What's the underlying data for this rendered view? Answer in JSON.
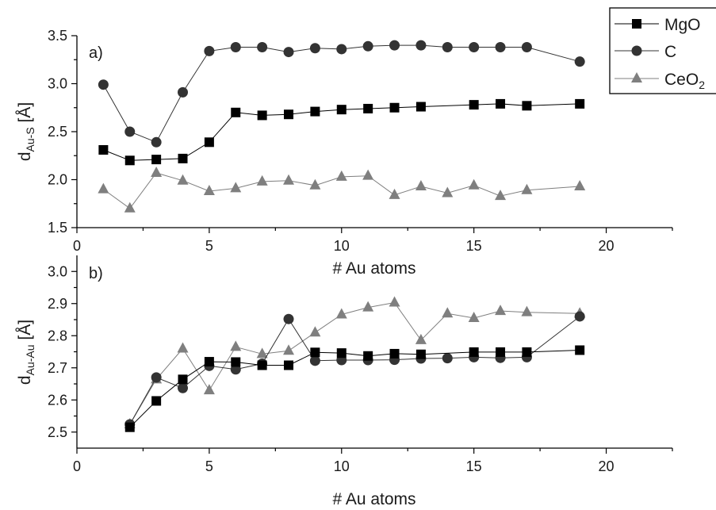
{
  "chart_data": [
    {
      "type": "line",
      "panel_label": "a)",
      "xlabel": "# Au atoms",
      "ylabel": {
        "base": "d",
        "sub": "Au-S",
        "unit": " [Å]"
      },
      "xlim": [
        0,
        22.5
      ],
      "ylim": [
        1.5,
        3.5
      ],
      "xticks": [
        "0",
        "5",
        "10",
        "15",
        "20"
      ],
      "yticks": [
        "1.5",
        "2.0",
        "2.5",
        "3.0",
        "3.5"
      ],
      "grid": false,
      "legend": "top-right",
      "series": [
        {
          "name": "MgO",
          "marker": "square",
          "color": "#000000",
          "x": [
            1,
            2,
            3,
            4,
            5,
            6,
            7,
            8,
            9,
            10,
            11,
            12,
            13,
            15,
            16,
            17,
            19
          ],
          "y": [
            2.31,
            2.2,
            2.21,
            2.22,
            2.39,
            2.7,
            2.67,
            2.68,
            2.71,
            2.73,
            2.74,
            2.75,
            2.76,
            2.78,
            2.79,
            2.77,
            2.79
          ]
        },
        {
          "name": "C",
          "marker": "circle",
          "color": "#333333",
          "x": [
            1,
            2,
            3,
            4,
            5,
            6,
            7,
            8,
            9,
            10,
            11,
            12,
            13,
            14,
            15,
            16,
            17,
            19
          ],
          "y": [
            2.99,
            2.5,
            2.39,
            2.91,
            3.34,
            3.38,
            3.38,
            3.33,
            3.37,
            3.36,
            3.39,
            3.4,
            3.4,
            3.38,
            3.38,
            3.38,
            3.38,
            3.23
          ]
        },
        {
          "name": "CeO2",
          "marker": "triangle",
          "color": "#7f7f7f",
          "x": [
            1,
            2,
            3,
            4,
            5,
            6,
            7,
            8,
            9,
            10,
            11,
            12,
            13,
            14,
            15,
            16,
            17,
            19
          ],
          "y": [
            1.9,
            1.7,
            2.07,
            1.99,
            1.88,
            1.91,
            1.98,
            1.99,
            1.94,
            2.03,
            2.04,
            1.84,
            1.93,
            1.86,
            1.94,
            1.83,
            1.89,
            1.93
          ]
        }
      ]
    },
    {
      "type": "line",
      "panel_label": "b)",
      "xlabel": "# Au atoms",
      "ylabel": {
        "base": "d",
        "sub": "Au-Au",
        "unit": " [Å]"
      },
      "xlim": [
        0,
        22.5
      ],
      "ylim": [
        2.45,
        3.05
      ],
      "xticks": [
        "0",
        "5",
        "10",
        "15",
        "20"
      ],
      "yticks": [
        "2.5",
        "2.6",
        "2.7",
        "2.8",
        "2.9",
        "3.0"
      ],
      "grid": false,
      "series": [
        {
          "name": "MgO",
          "marker": "square",
          "color": "#000000",
          "x": [
            2,
            3,
            4,
            5,
            6,
            7,
            8,
            9,
            10,
            11,
            12,
            13,
            15,
            16,
            17,
            19
          ],
          "y": [
            2.515,
            2.597,
            2.664,
            2.719,
            2.718,
            2.708,
            2.708,
            2.748,
            2.746,
            2.737,
            2.744,
            2.742,
            2.749,
            2.749,
            2.749,
            2.755
          ]
        },
        {
          "name": "C",
          "marker": "circle",
          "color": "#333333",
          "x": [
            2,
            3,
            4,
            5,
            6,
            7,
            8,
            9,
            10,
            11,
            12,
            13,
            14,
            15,
            16,
            17,
            19
          ],
          "y": [
            2.524,
            2.67,
            2.637,
            2.706,
            2.695,
            2.713,
            2.852,
            2.722,
            2.724,
            2.724,
            2.725,
            2.729,
            2.73,
            2.733,
            2.731,
            2.733,
            2.86
          ]
        },
        {
          "name": "CeO2",
          "marker": "triangle",
          "color": "#7f7f7f",
          "x": [
            2,
            3,
            4,
            5,
            6,
            7,
            8,
            9,
            10,
            11,
            12,
            13,
            14,
            15,
            16,
            17,
            19
          ],
          "y": [
            2.524,
            2.664,
            2.76,
            2.63,
            2.765,
            2.743,
            2.753,
            2.81,
            2.866,
            2.888,
            2.903,
            2.786,
            2.869,
            2.855,
            2.877,
            2.873,
            2.869
          ]
        }
      ]
    }
  ],
  "legend": {
    "entries": [
      {
        "label": "MgO",
        "marker": "square",
        "color": "#000000"
      },
      {
        "label": "C",
        "marker": "circle",
        "color": "#333333"
      },
      {
        "label": "CeO",
        "sub": "2",
        "marker": "triangle",
        "color": "#7f7f7f"
      }
    ]
  }
}
